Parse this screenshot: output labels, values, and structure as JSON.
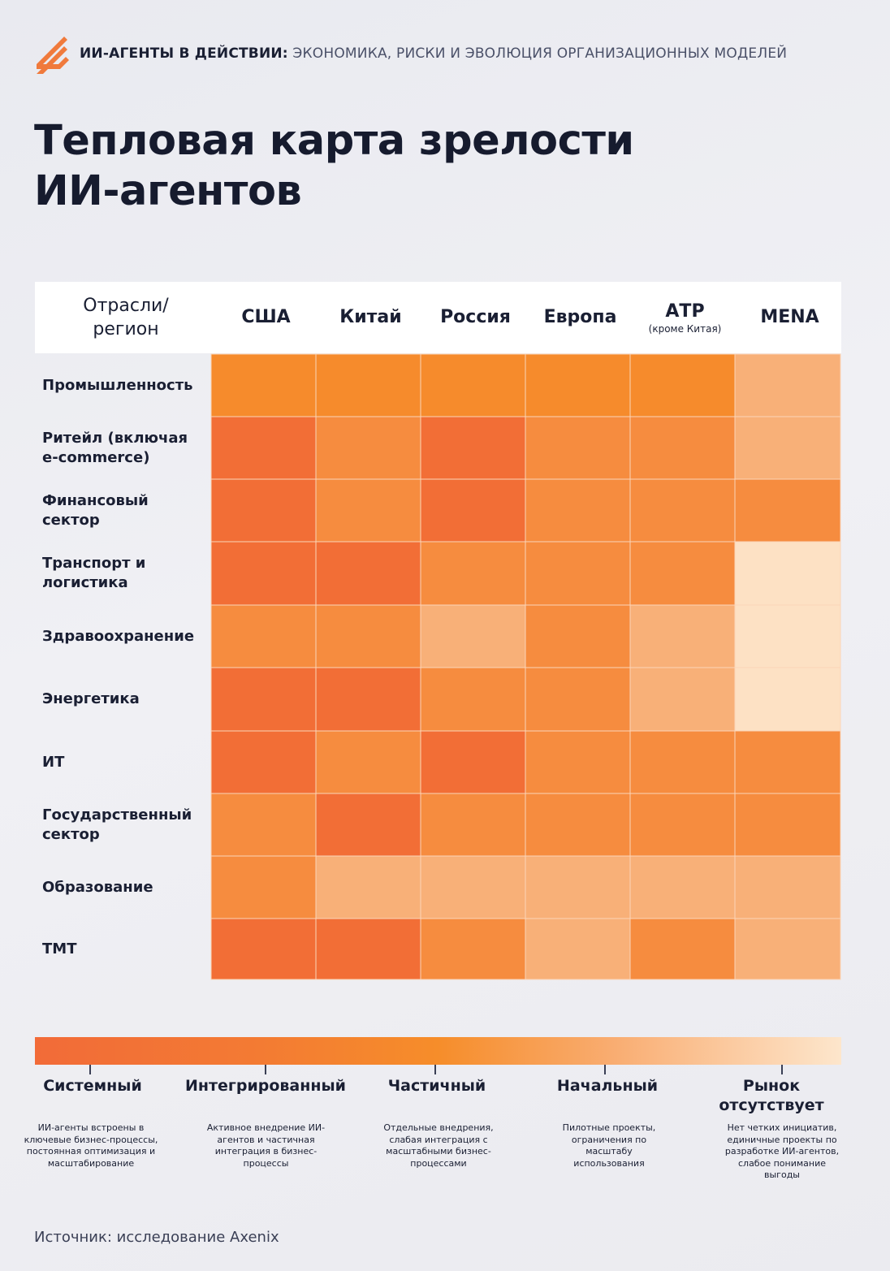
{
  "header": {
    "title_bold": "ИИ-АГЕНТЫ В ДЕЙСТВИИ:",
    "title_light": "ЭКОНОМИКА, РИСКИ И ЭВОЛЮЦИЯ ОРГАНИЗАЦИОННЫХ МОДЕЛЕЙ",
    "logo_icon": "stripes-logo-icon",
    "accent_color": "#f07a3c"
  },
  "page_title": {
    "line1": "Тепловая карта зрелости",
    "line2": "ИИ-агентов"
  },
  "chart_data": {
    "type": "heatmap",
    "title": "Тепловая карта зрелости ИИ-агентов",
    "corner_label": "Отрасли/ регион",
    "columns": [
      {
        "name": "США",
        "note": ""
      },
      {
        "name": "Китай",
        "note": ""
      },
      {
        "name": "Россия",
        "note": ""
      },
      {
        "name": "Европа",
        "note": ""
      },
      {
        "name": "АТР",
        "note": "(кроме Китая)"
      },
      {
        "name": "MENA",
        "note": ""
      }
    ],
    "rows": [
      {
        "label": "Промышленность",
        "values": [
          "Частичный",
          "Частичный",
          "Частичный",
          "Частичный",
          "Частичный",
          "Начальный"
        ]
      },
      {
        "label": "Ритейл (включая e-commerce)",
        "values": [
          "Системный",
          "Интегрированный",
          "Системный",
          "Интегрированный",
          "Интегрированный",
          "Начальный"
        ]
      },
      {
        "label": "Финансовый сектор",
        "values": [
          "Системный",
          "Интегрированный",
          "Системный",
          "Интегрированный",
          "Интегрированный",
          "Интегрированный"
        ]
      },
      {
        "label": "Транспорт и логистика",
        "values": [
          "Системный",
          "Системный",
          "Интегрированный",
          "Интегрированный",
          "Интегрированный",
          "Рынок отсутствует"
        ]
      },
      {
        "label": "Здравоохранение",
        "values": [
          "Интегрированный",
          "Интегрированный",
          "Начальный",
          "Интегрированный",
          "Начальный",
          "Рынок отсутствует"
        ]
      },
      {
        "label": "Энергетика",
        "values": [
          "Системный",
          "Системный",
          "Интегрированный",
          "Интегрированный",
          "Начальный",
          "Рынок отсутствует"
        ]
      },
      {
        "label": "ИТ",
        "values": [
          "Системный",
          "Интегрированный",
          "Системный",
          "Интегрированный",
          "Интегрированный",
          "Интегрированный"
        ]
      },
      {
        "label": "Государственный сектор",
        "values": [
          "Интегрированный",
          "Системный",
          "Интегрированный",
          "Интегрированный",
          "Интегрированный",
          "Интегрированный"
        ]
      },
      {
        "label": "Образование",
        "values": [
          "Интегрированный",
          "Начальный",
          "Начальный",
          "Начальный",
          "Начальный",
          "Начальный"
        ]
      },
      {
        "label": "ТМТ",
        "values": [
          "Системный",
          "Системный",
          "Интегрированный",
          "Начальный",
          "Интегрированный",
          "Начальный"
        ]
      }
    ],
    "levels": [
      {
        "name": "Системный",
        "color": "#f26e36",
        "description": "ИИ-агенты встроены в ключевые бизнес-процессы, постоянная оптимизация и масштабирование"
      },
      {
        "name": "Интегрированный",
        "color": "#f68c3f",
        "description": "Активное внедрение ИИ-агентов и частичная интеграция в бизнес-процессы"
      },
      {
        "name": "Частичный",
        "color": "#f68b2c",
        "description": "Отдельные внедрения, слабая интеграция с масштабными бизнес-процессами"
      },
      {
        "name": "Начальный",
        "color": "#f8b078",
        "description": "Пилотные проекты, ограничения по масштабу использования"
      },
      {
        "name": "Рынок отсутствует",
        "color": "#fde1c4",
        "description": "Нет четких инициатив, единичные проекты по разработке ИИ-агентов, слабое понимание выгоды"
      }
    ]
  },
  "footer": {
    "source": "Источник: исследование Axenix"
  }
}
